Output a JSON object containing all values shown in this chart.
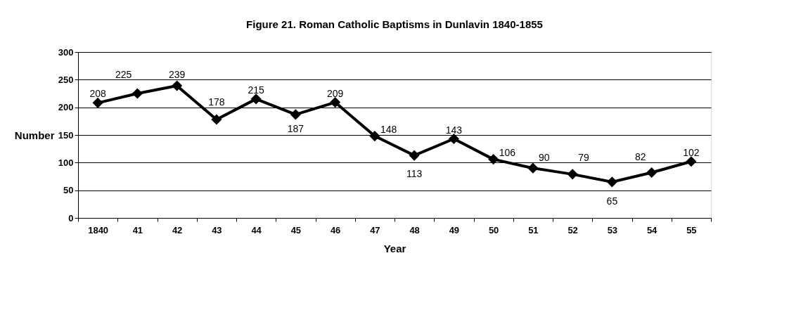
{
  "chart_data": {
    "type": "line",
    "title": "Figure 21. Roman Catholic Baptisms in Dunlavin 1840-1855",
    "xlabel": "Year",
    "ylabel": "Number",
    "categories": [
      "1840",
      "41",
      "42",
      "43",
      "44",
      "45",
      "46",
      "47",
      "48",
      "49",
      "50",
      "51",
      "52",
      "53",
      "54",
      "55"
    ],
    "series": [
      {
        "color": "#000000",
        "values": [
          208,
          225,
          239,
          178,
          215,
          187,
          209,
          148,
          113,
          143,
          106,
          90,
          79,
          65,
          82,
          102
        ]
      }
    ],
    "ylim": [
      0,
      300
    ],
    "yticks": [
      0,
      50,
      100,
      150,
      200,
      250,
      300
    ],
    "grid": "y",
    "legend": false,
    "marker": "diamond",
    "line_style": "solid",
    "data_labels": true
  }
}
